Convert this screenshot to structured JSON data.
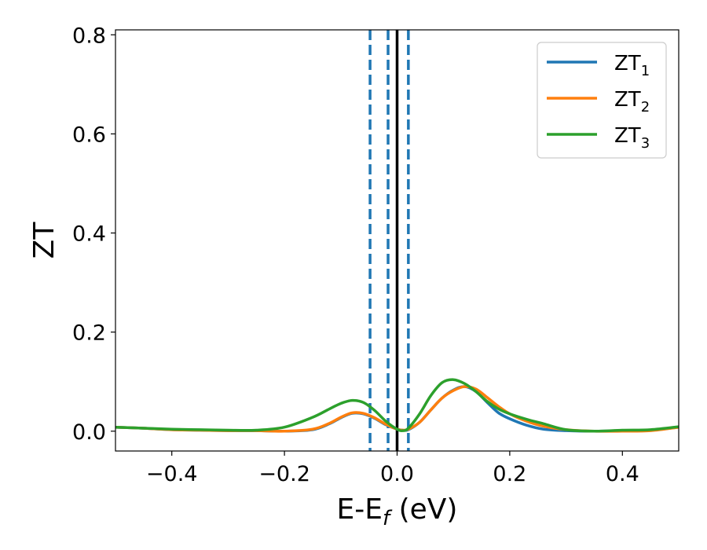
{
  "chart_data": {
    "type": "line",
    "xlabel_main": "E-E",
    "xlabel_sub": "f",
    "xlabel_unit": " (eV)",
    "ylabel": "ZT",
    "xlim": [
      -0.5,
      0.5
    ],
    "ylim": [
      -0.04,
      0.81
    ],
    "xticks": [
      -0.4,
      -0.2,
      0.0,
      0.2,
      0.4
    ],
    "xtick_labels": [
      "−0.4",
      "−0.2",
      "0.0",
      "0.2",
      "0.4"
    ],
    "yticks": [
      0.0,
      0.2,
      0.4,
      0.6,
      0.8
    ],
    "ytick_labels": [
      "0.0",
      "0.2",
      "0.4",
      "0.6",
      "0.8"
    ],
    "grid": false,
    "legend_position": "top-right",
    "vlines": [
      {
        "x": -0.048,
        "style": "dashed",
        "color": "#1f77b4"
      },
      {
        "x": -0.016,
        "style": "dashed",
        "color": "#1f77b4"
      },
      {
        "x": 0.02,
        "style": "dashed",
        "color": "#1f77b4"
      },
      {
        "x": 0.0,
        "style": "solid",
        "color": "#000000"
      }
    ],
    "series": [
      {
        "name": "ZT",
        "subscript": "1",
        "color": "#1f77b4",
        "x": [
          -0.5,
          -0.45,
          -0.4,
          -0.35,
          -0.3,
          -0.25,
          -0.2,
          -0.15,
          -0.12,
          -0.1,
          -0.08,
          -0.06,
          -0.04,
          -0.02,
          0.0,
          0.01,
          0.02,
          0.04,
          0.06,
          0.08,
          0.1,
          0.12,
          0.14,
          0.16,
          0.18,
          0.2,
          0.23,
          0.26,
          0.3,
          0.35,
          0.4,
          0.45,
          0.5
        ],
        "values": [
          0.008,
          0.006,
          0.003,
          0.002,
          0.001,
          0.001,
          0.0,
          0.003,
          0.015,
          0.027,
          0.036,
          0.035,
          0.026,
          0.013,
          0.004,
          0.002,
          0.003,
          0.018,
          0.043,
          0.067,
          0.083,
          0.09,
          0.08,
          0.058,
          0.037,
          0.025,
          0.012,
          0.004,
          0.001,
          0.0,
          0.001,
          0.002,
          0.008
        ]
      },
      {
        "name": "ZT",
        "subscript": "2",
        "color": "#ff7f0e",
        "x": [
          -0.5,
          -0.45,
          -0.4,
          -0.35,
          -0.3,
          -0.25,
          -0.2,
          -0.15,
          -0.12,
          -0.1,
          -0.08,
          -0.06,
          -0.04,
          -0.02,
          0.0,
          0.01,
          0.02,
          0.04,
          0.06,
          0.08,
          0.1,
          0.12,
          0.14,
          0.16,
          0.18,
          0.2,
          0.23,
          0.26,
          0.3,
          0.35,
          0.4,
          0.45,
          0.5
        ],
        "values": [
          0.008,
          0.006,
          0.003,
          0.002,
          0.001,
          0.001,
          0.0,
          0.004,
          0.016,
          0.028,
          0.037,
          0.036,
          0.027,
          0.014,
          0.004,
          0.002,
          0.004,
          0.018,
          0.043,
          0.067,
          0.082,
          0.09,
          0.085,
          0.068,
          0.05,
          0.035,
          0.02,
          0.01,
          0.003,
          0.0,
          0.0,
          0.001,
          0.008
        ]
      },
      {
        "name": "ZT",
        "subscript": "3",
        "color": "#2ca02c",
        "x": [
          -0.5,
          -0.45,
          -0.4,
          -0.35,
          -0.3,
          -0.25,
          -0.2,
          -0.15,
          -0.12,
          -0.1,
          -0.08,
          -0.06,
          -0.04,
          -0.02,
          0.0,
          0.01,
          0.02,
          0.04,
          0.06,
          0.08,
          0.1,
          0.12,
          0.14,
          0.16,
          0.18,
          0.2,
          0.23,
          0.26,
          0.3,
          0.35,
          0.4,
          0.45,
          0.5
        ],
        "values": [
          0.008,
          0.006,
          0.004,
          0.003,
          0.002,
          0.002,
          0.008,
          0.028,
          0.045,
          0.056,
          0.062,
          0.058,
          0.042,
          0.02,
          0.004,
          0.001,
          0.006,
          0.035,
          0.072,
          0.098,
          0.104,
          0.096,
          0.08,
          0.06,
          0.045,
          0.035,
          0.024,
          0.015,
          0.003,
          0.0,
          0.002,
          0.003,
          0.009
        ]
      }
    ]
  }
}
